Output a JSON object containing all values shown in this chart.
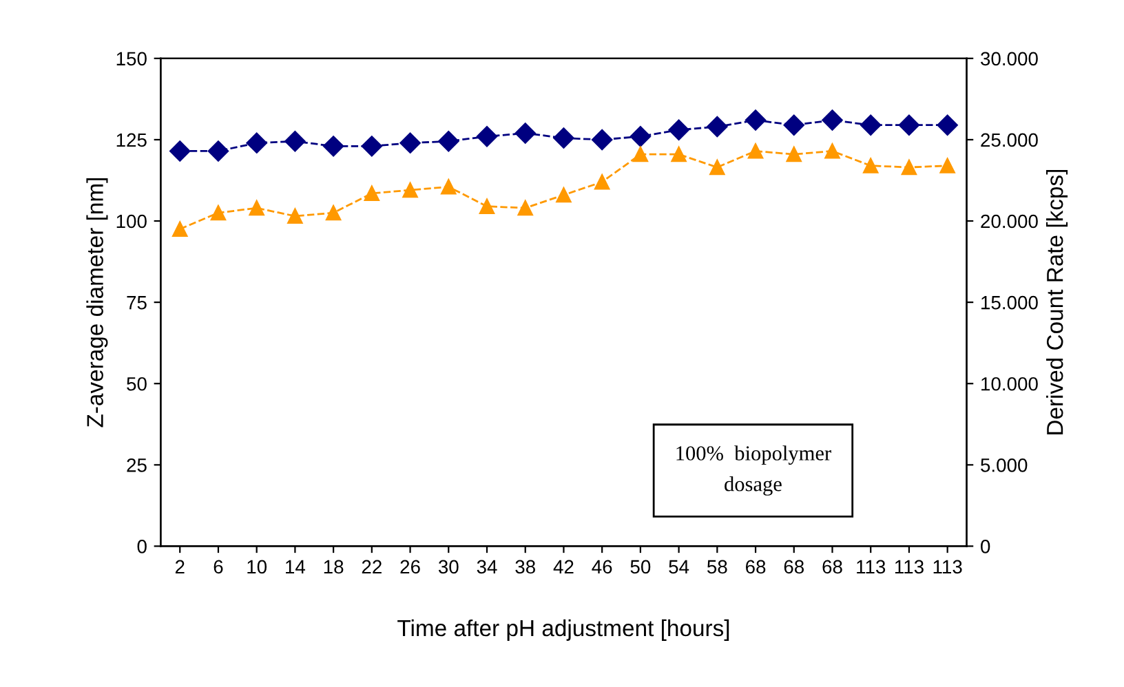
{
  "chart_data": {
    "type": "line",
    "categories": [
      "2",
      "6",
      "10",
      "14",
      "18",
      "22",
      "26",
      "30",
      "34",
      "38",
      "42",
      "46",
      "50",
      "54",
      "58",
      "68",
      "68",
      "68",
      "113",
      "113",
      "113"
    ],
    "xlabel": "Time after pH adjustment [hours]",
    "ylabel": "Z-average diameter [nm]",
    "y2label": "Derived Count Rate [kcps]",
    "series": [
      {
        "color": "#000080",
        "marker": "diamond",
        "line_style": "dashed",
        "values": [
          121.5,
          121.5,
          124,
          124.5,
          123,
          123,
          124,
          124.5,
          126,
          127,
          125.5,
          125,
          126,
          128,
          129,
          131,
          129.5,
          131,
          129.5,
          129.5,
          129.5
        ]
      },
      {
        "color": "#ff9900",
        "marker": "triangle",
        "line_style": "dashed",
        "axis": "y2",
        "values": [
          19500,
          20500,
          20800,
          20300,
          20500,
          21700,
          21900,
          22100,
          20900,
          20800,
          21600,
          22400,
          24100,
          24100,
          23300,
          24300,
          24100,
          24300,
          23400,
          23300,
          23400
        ]
      }
    ],
    "ylim": [
      0,
      150
    ],
    "yticks": [
      0,
      25,
      50,
      75,
      100,
      125,
      150
    ],
    "y2lim": [
      0,
      30000
    ],
    "y2ticks": [
      {
        "value": 0,
        "label": "0"
      },
      {
        "value": 5000,
        "label": "5.000"
      },
      {
        "value": 10000,
        "label": "10.000"
      },
      {
        "value": 15000,
        "label": "15.000"
      },
      {
        "value": 20000,
        "label": "20.000"
      },
      {
        "value": 25000,
        "label": "25.000"
      },
      {
        "value": 30000,
        "label": "30.000"
      }
    ],
    "annotations": [
      "100%  biopolymer\ndosage"
    ],
    "grid": false,
    "legend": false
  }
}
